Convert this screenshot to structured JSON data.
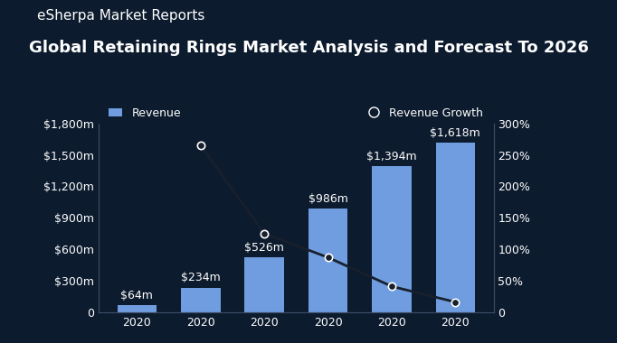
{
  "chart_data": {
    "type": "bar",
    "title": "Global Retaining Rings Market Analysis and Forecast To 2026",
    "subtitle": "eSherpa Market Reports",
    "categories": [
      "2020",
      "2020",
      "2020",
      "2020",
      "2020",
      "2020"
    ],
    "series": [
      {
        "name": "Revenue",
        "type": "bar",
        "color": "#6f9de0",
        "values": [
          64,
          234,
          526,
          986,
          1394,
          1618
        ],
        "value_labels": [
          "$64m",
          "$234m",
          "$526m",
          "$986m",
          "$1,394m",
          "$1,618m"
        ]
      },
      {
        "name": "Revenue Growth",
        "type": "line",
        "axis": "y2",
        "color": "#17202c",
        "marker": "o",
        "line_style": "solid",
        "values": [
          null,
          265,
          125,
          87,
          41,
          16
        ]
      }
    ],
    "data_labels": true,
    "grid": false,
    "legend": "upper left",
    "ylim": [
      0,
      1800
    ],
    "yticks": [
      0,
      {
        "value": 300,
        "label": "$300m"
      },
      {
        "value": 600,
        "label": "$600m"
      },
      {
        "value": 900,
        "label": "$900m"
      },
      {
        "value": 1200,
        "label": "$1,200m"
      },
      {
        "value": 1500,
        "label": "$1,500m"
      },
      {
        "value": 1800,
        "label": "$1,800m"
      }
    ],
    "y2lim": [
      0,
      300
    ],
    "y2ticks": [
      0,
      {
        "value": 50,
        "label": "50%"
      },
      {
        "value": 100,
        "label": "100%"
      },
      {
        "value": 150,
        "label": "150%"
      },
      {
        "value": 200,
        "label": "200%"
      },
      {
        "value": 250,
        "label": "250%"
      },
      {
        "value": 300,
        "label": "300%"
      }
    ]
  }
}
